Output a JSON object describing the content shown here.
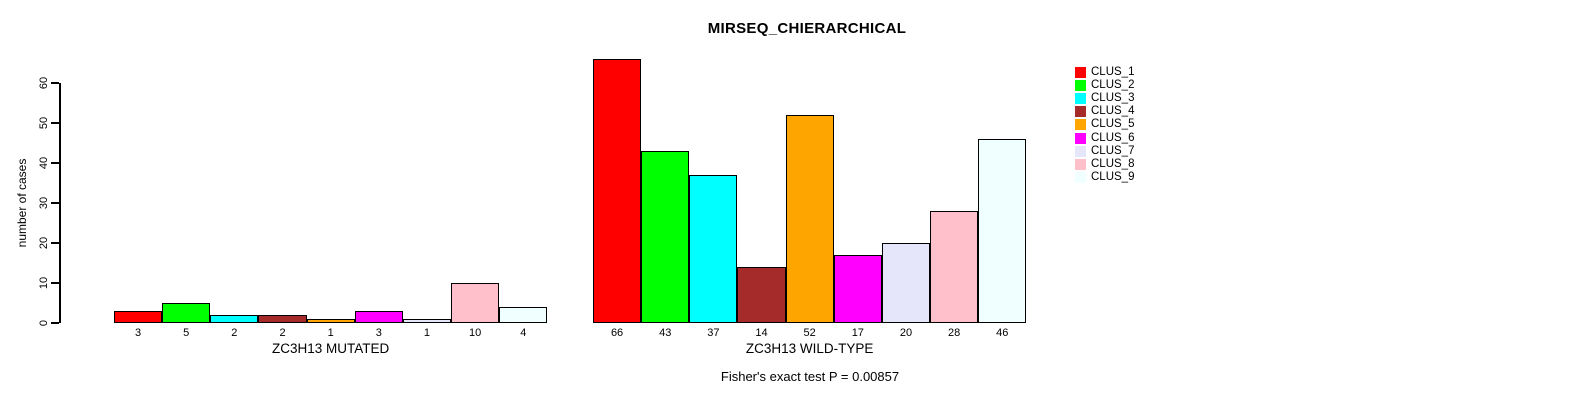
{
  "chart_data": {
    "type": "bar",
    "title": "MIRSEQ_CHIERARCHICAL",
    "ylabel": "number of cases",
    "xlabel": "",
    "ylim": [
      0,
      60
    ],
    "yticks": [
      0,
      10,
      20,
      30,
      40,
      50,
      60
    ],
    "grid": false,
    "legend_position": "right",
    "clusters": [
      "CLUS_1",
      "CLUS_2",
      "CLUS_3",
      "CLUS_4",
      "CLUS_5",
      "CLUS_6",
      "CLUS_7",
      "CLUS_8",
      "CLUS_9"
    ],
    "colors": [
      "#FF0000",
      "#00FF00",
      "#00FFFF",
      "#A52A2A",
      "#FFA500",
      "#FF00FF",
      "#E6E6FA",
      "#FFC0CB",
      "#F0FFFF"
    ],
    "groups": [
      {
        "label": "ZC3H13 MUTATED",
        "values": [
          3,
          5,
          2,
          2,
          1,
          3,
          1,
          10,
          4
        ]
      },
      {
        "label": "ZC3H13 WILD-TYPE",
        "values": [
          66,
          43,
          37,
          14,
          52,
          17,
          20,
          28,
          46
        ]
      }
    ],
    "footnote": "Fisher's exact test P = 0.00857"
  }
}
